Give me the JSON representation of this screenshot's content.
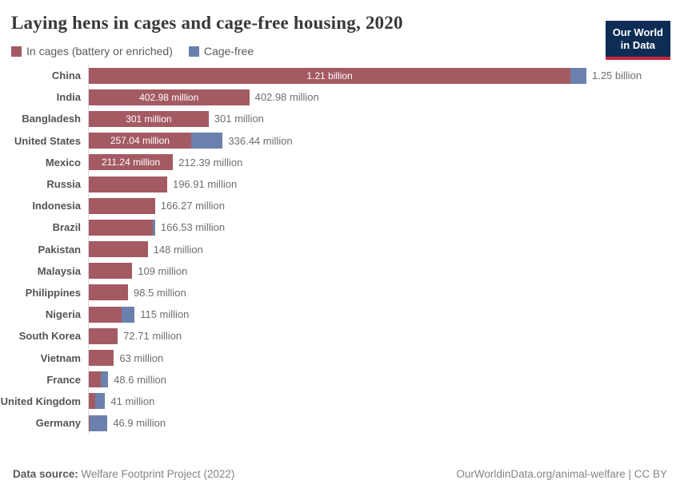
{
  "header": {
    "title": "Laying hens in cages and cage-free housing, 2020",
    "logo_line1": "Our World",
    "logo_line2": "in Data",
    "logo_bg_color": "#0d2d55",
    "logo_accent_color": "#c5283c"
  },
  "legend": [
    {
      "label": "In cages (battery or enriched)",
      "color": "#a45a63"
    },
    {
      "label": "Cage-free",
      "color": "#6c80ad"
    }
  ],
  "chart_data": {
    "type": "bar",
    "orientation": "horizontal",
    "stacked": true,
    "title": "Laying hens in cages and cage-free housing, 2020",
    "unit": "million hens",
    "xlim_million": [
      0,
      1250
    ],
    "grid": false,
    "legend_position": "top-left",
    "categories": [
      "China",
      "India",
      "Bangladesh",
      "United States",
      "Mexico",
      "Russia",
      "Indonesia",
      "Brazil",
      "Pakistan",
      "Malaysia",
      "Philippines",
      "Nigeria",
      "South Korea",
      "Vietnam",
      "France",
      "United Kingdom",
      "Germany"
    ],
    "series": [
      {
        "name": "In cages (battery or enriched)",
        "color": "#a45a63",
        "values_million": [
          1210,
          402.98,
          301,
          257.04,
          211.24,
          196.91,
          166.27,
          160.5,
          148,
          109,
          98.5,
          82,
          72.71,
          63,
          30,
          17,
          2
        ]
      },
      {
        "name": "Cage-free",
        "color": "#6c80ad",
        "values_million": [
          40,
          0,
          0,
          79.4,
          1.15,
          0,
          0,
          6.03,
          0,
          0,
          0,
          33,
          0,
          0,
          18.6,
          24,
          44.9
        ]
      }
    ],
    "bar_labels": [
      "1.21 billion",
      "402.98 million",
      "301 million",
      "257.04 million",
      "211.24 million",
      "",
      "",
      "",
      "",
      "",
      "",
      "",
      "",
      "",
      "",
      "",
      ""
    ],
    "total_labels": [
      "1.25 billion",
      "402.98 million",
      "301 million",
      "336.44 million",
      "212.39 million",
      "196.91 million",
      "166.27 million",
      "166.53 million",
      "148 million",
      "109 million",
      "98.5 million",
      "115 million",
      "72.71 million",
      "63 million",
      "48.6 million",
      "41 million",
      "46.9 million"
    ]
  },
  "footer": {
    "source_label": "Data source:",
    "source_value": " Welfare Footprint Project (2022)",
    "right": "OurWorldinData.org/animal-welfare | CC BY"
  }
}
